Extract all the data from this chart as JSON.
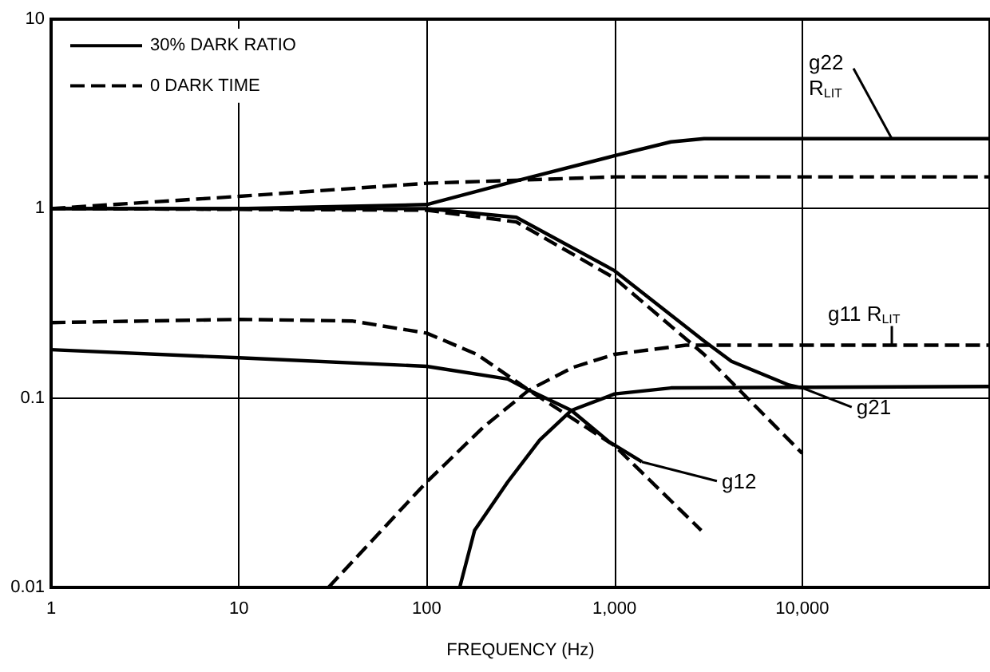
{
  "chart_data": {
    "type": "line",
    "xlabel": "FREQUENCY (Hz)",
    "log": "xy",
    "grid": true,
    "legend": "top left",
    "marker": "none",
    "xlim": [
      1,
      100000
    ],
    "ylim": [
      0.01,
      10
    ],
    "xticks": [
      1,
      10,
      100,
      {
        "value": 1000,
        "label": "1,000"
      },
      {
        "value": 10000,
        "label": "10,000"
      }
    ],
    "yticks": [
      0.01,
      0.1,
      1,
      10
    ],
    "series": [
      {
        "name": "30% DARK RATIO",
        "color": "#000000",
        "line_style": "solid",
        "x": [
          1,
          10,
          100,
          300,
          1000,
          2000,
          3000,
          100000
        ],
        "values": [
          1,
          1,
          1.05,
          1.4,
          1.9,
          2.25,
          2.34,
          2.34
        ]
      },
      {
        "name": "0 DARK TIME",
        "color": "#000000",
        "line_style": "dashed",
        "x": [
          1,
          10,
          100,
          1000,
          100000
        ],
        "values": [
          1,
          1.16,
          1.36,
          1.47,
          1.47
        ]
      },
      {
        "color": "#000000",
        "line_style": "solid",
        "x": [
          1,
          100,
          300,
          1000,
          3000,
          4200,
          8500,
          10000
        ],
        "values": [
          1,
          1,
          0.9,
          0.47,
          0.2,
          0.156,
          0.117,
          0.113
        ]
      },
      {
        "color": "#000000",
        "line_style": "dashed",
        "x": [
          1,
          100,
          300,
          1000,
          3000,
          10000
        ],
        "values": [
          1,
          0.98,
          0.85,
          0.43,
          0.17,
          0.051
        ]
      },
      {
        "color": "#000000",
        "line_style": "dashed",
        "x": [
          30,
          100,
          200,
          350,
          600,
          1000,
          2400,
          100000
        ],
        "values": [
          0.01,
          0.036,
          0.07,
          0.11,
          0.145,
          0.17,
          0.19,
          0.19
        ]
      },
      {
        "color": "#000000",
        "line_style": "solid",
        "x": [
          150,
          180,
          270,
          400,
          590,
          1000,
          2000,
          100000
        ],
        "values": [
          0.01,
          0.02,
          0.036,
          0.06,
          0.086,
          0.105,
          0.113,
          0.115
        ]
      },
      {
        "color": "#000000",
        "line_style": "solid",
        "x": [
          1,
          10,
          100,
          270,
          350,
          590,
          930,
          1400
        ],
        "values": [
          0.18,
          0.163,
          0.147,
          0.126,
          0.11,
          0.086,
          0.059,
          0.046
        ]
      },
      {
        "color": "#000000",
        "line_style": "dashed",
        "x": [
          1,
          10,
          40,
          100,
          185,
          350,
          1000,
          2900
        ],
        "values": [
          0.25,
          0.26,
          0.255,
          0.22,
          0.17,
          0.11,
          0.056,
          0.02
        ]
      }
    ],
    "annotations": [
      {
        "text": "g22\nR$_{LIT}$",
        "x": 30000,
        "y": 2.34
      },
      {
        "text": "g11 R$_{LIT}$",
        "x": 30000,
        "y": 0.19
      },
      {
        "text": "g21",
        "x": 10000,
        "y": 0.113
      },
      {
        "text": "g12",
        "x": 1400,
        "y": 0.046
      }
    ]
  }
}
